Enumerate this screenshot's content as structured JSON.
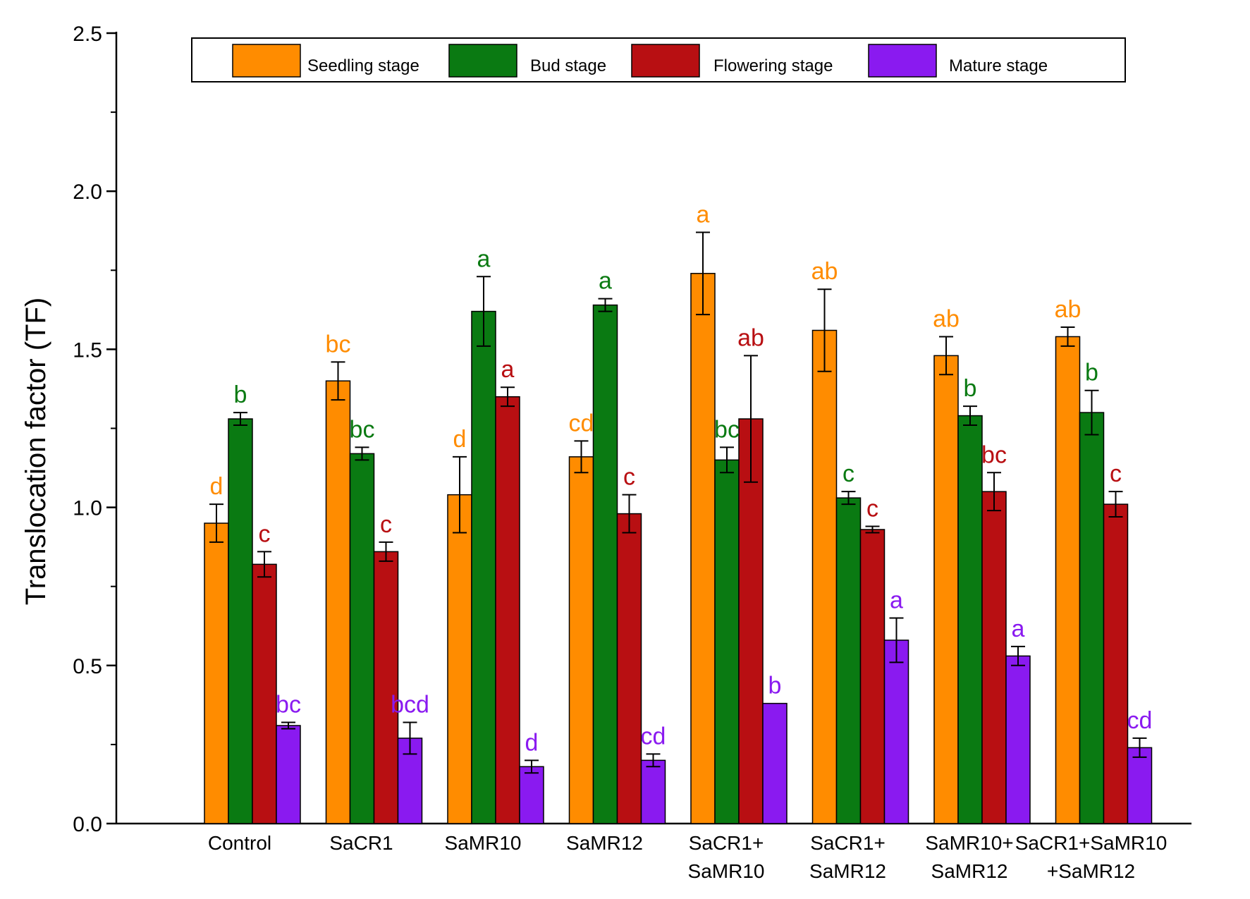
{
  "chart_data": {
    "type": "bar",
    "ylabel": "Translocation factor (TF)",
    "xlabel": "",
    "ylim": [
      0,
      2.5
    ],
    "yticks": [
      "0.0",
      "0.5",
      "1.0",
      "1.5",
      "2.0",
      "2.5"
    ],
    "legend_position": "top",
    "categories": [
      [
        "Control"
      ],
      [
        "SaCR1"
      ],
      [
        "SaMR10"
      ],
      [
        "SaMR12"
      ],
      [
        "SaCR1+",
        "SaMR10"
      ],
      [
        "SaCR1+",
        "SaMR12"
      ],
      [
        "SaMR10+",
        "SaMR12"
      ],
      [
        "SaCR1+SaMR10",
        "+SaMR12"
      ]
    ],
    "series": [
      {
        "name": "Seedling stage",
        "color": "#FF8C00",
        "values": [
          0.95,
          1.4,
          1.04,
          1.16,
          1.74,
          1.56,
          1.48,
          1.54
        ],
        "errors": [
          0.06,
          0.06,
          0.12,
          0.05,
          0.13,
          0.13,
          0.06,
          0.03
        ],
        "labels": [
          "d",
          "bc",
          "d",
          "cd",
          "a",
          "ab",
          "ab",
          "ab"
        ]
      },
      {
        "name": "Bud stage",
        "color": "#0A7A12",
        "values": [
          1.28,
          1.17,
          1.62,
          1.64,
          1.15,
          1.03,
          1.29,
          1.3
        ],
        "errors": [
          0.02,
          0.02,
          0.11,
          0.02,
          0.04,
          0.02,
          0.03,
          0.07
        ],
        "labels": [
          "b",
          "bc",
          "a",
          "a",
          "bc",
          "c",
          "b",
          "b"
        ]
      },
      {
        "name": "Flowering stage",
        "color": "#B80F12",
        "values": [
          0.82,
          0.86,
          1.35,
          0.98,
          1.28,
          0.93,
          1.05,
          1.01
        ],
        "errors": [
          0.04,
          0.03,
          0.03,
          0.06,
          0.2,
          0.01,
          0.06,
          0.04
        ],
        "labels": [
          "c",
          "c",
          "a",
          "c",
          "ab",
          "c",
          "bc",
          "c"
        ]
      },
      {
        "name": "Mature stage",
        "color": "#8A1AF0",
        "values": [
          0.31,
          0.27,
          0.18,
          0.2,
          0.38,
          0.58,
          0.53,
          0.24
        ],
        "errors": [
          0.01,
          0.05,
          0.02,
          0.02,
          0.0,
          0.07,
          0.03,
          0.03
        ],
        "labels": [
          "bc",
          "bcd",
          "d",
          "cd",
          "b",
          "a",
          "a",
          "cd"
        ]
      }
    ]
  }
}
